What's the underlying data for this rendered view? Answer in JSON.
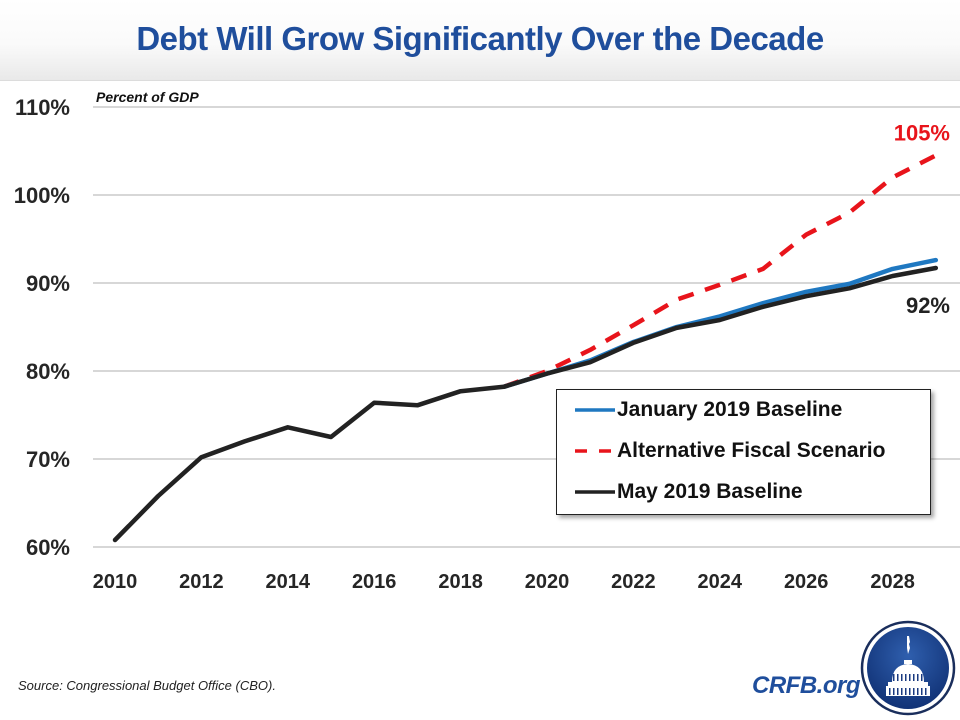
{
  "header": {
    "title": "Debt Will Grow Significantly Over the Decade"
  },
  "footer": {
    "source": "Source: Congressional Budget Office (CBO).",
    "brand": "CRFB.org",
    "logo_icon": "capitol-dome-icon"
  },
  "colors": {
    "title": "#1f4e9c",
    "january": "#1f78c1",
    "alternative": "#e8141b",
    "may": "#222222",
    "grid": "#bfbfbf"
  },
  "chart_data": {
    "type": "line",
    "title": "Debt Will Grow Significantly Over the Decade",
    "ylabel": "Percent of GDP",
    "xlabel": "",
    "ylim": [
      60,
      110
    ],
    "xlim": [
      2010,
      2029
    ],
    "yticks": [
      60,
      70,
      80,
      90,
      100,
      110
    ],
    "ytick_labels": [
      "60%",
      "70%",
      "80%",
      "90%",
      "100%",
      "110%"
    ],
    "xticks": [
      2010,
      2012,
      2014,
      2016,
      2018,
      2020,
      2022,
      2024,
      2026,
      2028
    ],
    "xtick_labels": [
      "2010",
      "2012",
      "2014",
      "2016",
      "2018",
      "2020",
      "2022",
      "2024",
      "2026",
      "2028"
    ],
    "grid": true,
    "legend_position": "lower-right",
    "series": [
      {
        "name": "January 2019 Baseline",
        "style": "solid",
        "color": "#1f78c1",
        "x": [
          2019,
          2020,
          2021,
          2022,
          2023,
          2024,
          2025,
          2026,
          2027,
          2028,
          2029
        ],
        "values": [
          78.2,
          79.7,
          81.2,
          83.3,
          85.0,
          86.2,
          87.7,
          89.0,
          89.9,
          91.6,
          92.6
        ]
      },
      {
        "name": "Alternative Fiscal Scenario",
        "style": "dashed",
        "color": "#e8141b",
        "x": [
          2019,
          2020,
          2021,
          2022,
          2023,
          2024,
          2025,
          2026,
          2027,
          2028,
          2029
        ],
        "values": [
          78.2,
          80.0,
          82.4,
          85.2,
          88.1,
          89.8,
          91.6,
          95.5,
          98.0,
          102.0,
          104.5
        ]
      },
      {
        "name": "May 2019 Baseline",
        "style": "solid",
        "color": "#222222",
        "x": [
          2010,
          2011,
          2012,
          2013,
          2014,
          2015,
          2016,
          2017,
          2018,
          2019,
          2020,
          2021,
          2022,
          2023,
          2024,
          2025,
          2026,
          2027,
          2028,
          2029
        ],
        "values": [
          60.8,
          65.8,
          70.2,
          72.0,
          73.6,
          72.5,
          76.4,
          76.1,
          77.7,
          78.2,
          79.7,
          81.0,
          83.2,
          84.9,
          85.8,
          87.3,
          88.5,
          89.4,
          90.8,
          91.7
        ]
      }
    ],
    "annotations": [
      {
        "text": "105%",
        "series": "Alternative Fiscal Scenario",
        "x": 2029,
        "color": "#e8141b"
      },
      {
        "text": "92%",
        "series": "May 2019 Baseline",
        "x": 2029,
        "color": "#222222"
      }
    ]
  }
}
